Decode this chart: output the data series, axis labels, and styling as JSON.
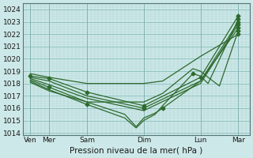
{
  "xlabel": "Pression niveau de la mer( hPa )",
  "ylim": [
    1013.8,
    1024.5
  ],
  "yticks": [
    1014,
    1015,
    1016,
    1017,
    1018,
    1019,
    1020,
    1021,
    1022,
    1023,
    1024
  ],
  "xtick_labels": [
    "Ven",
    "Mer",
    "Sam",
    "Dim",
    "Lun",
    "Mar"
  ],
  "xtick_positions": [
    0.0,
    0.5,
    1.5,
    3.0,
    4.5,
    5.5
  ],
  "xlim": [
    -0.2,
    5.8
  ],
  "bg_color": "#cde8e8",
  "grid_minor_color": "#b0d4d4",
  "grid_major_color": "#88bbbb",
  "line_color": "#2d6a2d",
  "marker_color": "#2d6a2d",
  "series": [
    [
      0.0,
      1018.6,
      0.5,
      1018.4,
      1.5,
      1017.3,
      3.0,
      1016.2,
      4.5,
      1018.5,
      5.5,
      1023.5
    ],
    [
      0.0,
      1018.5,
      0.5,
      1018.2,
      1.5,
      1017.0,
      3.0,
      1016.0,
      4.5,
      1018.2,
      5.5,
      1022.5
    ],
    [
      0.0,
      1018.4,
      0.5,
      1017.9,
      1.5,
      1016.8,
      3.0,
      1015.8,
      4.5,
      1018.0,
      5.5,
      1022.8
    ],
    [
      0.0,
      1018.3,
      0.5,
      1017.7,
      1.5,
      1016.5,
      2.5,
      1015.5,
      2.8,
      1014.5,
      3.0,
      1015.2,
      3.3,
      1015.6,
      3.5,
      1016.0,
      4.5,
      1018.2,
      5.5,
      1023.0
    ],
    [
      0.0,
      1018.2,
      0.5,
      1017.5,
      1.5,
      1016.3,
      2.5,
      1015.2,
      2.8,
      1014.4,
      3.0,
      1015.0,
      3.3,
      1015.5,
      3.5,
      1016.2,
      4.3,
      1018.8,
      4.5,
      1018.6,
      4.7,
      1018.0,
      5.5,
      1023.2
    ],
    [
      0.0,
      1018.1,
      0.5,
      1017.4,
      1.5,
      1016.5,
      3.0,
      1016.5,
      3.5,
      1017.2,
      4.3,
      1019.2,
      4.5,
      1019.0,
      4.7,
      1018.5,
      5.0,
      1017.8,
      5.5,
      1022.3
    ],
    [
      0.0,
      1018.8,
      0.5,
      1018.5,
      1.5,
      1018.0,
      3.0,
      1018.0,
      3.5,
      1018.2,
      4.5,
      1020.2,
      5.5,
      1022.0
    ]
  ],
  "markers": [
    [
      0.0,
      1018.6
    ],
    [
      0.5,
      1018.4
    ],
    [
      0.5,
      1017.7
    ],
    [
      1.5,
      1017.3
    ],
    [
      1.5,
      1016.3
    ],
    [
      3.0,
      1016.2
    ],
    [
      3.0,
      1016.0
    ],
    [
      3.5,
      1016.0
    ],
    [
      4.3,
      1018.8
    ],
    [
      4.5,
      1018.5
    ],
    [
      5.5,
      1023.5
    ],
    [
      5.5,
      1022.5
    ],
    [
      5.5,
      1023.0
    ],
    [
      5.5,
      1022.8
    ],
    [
      5.5,
      1023.2
    ],
    [
      5.5,
      1022.3
    ],
    [
      5.5,
      1022.0
    ]
  ]
}
